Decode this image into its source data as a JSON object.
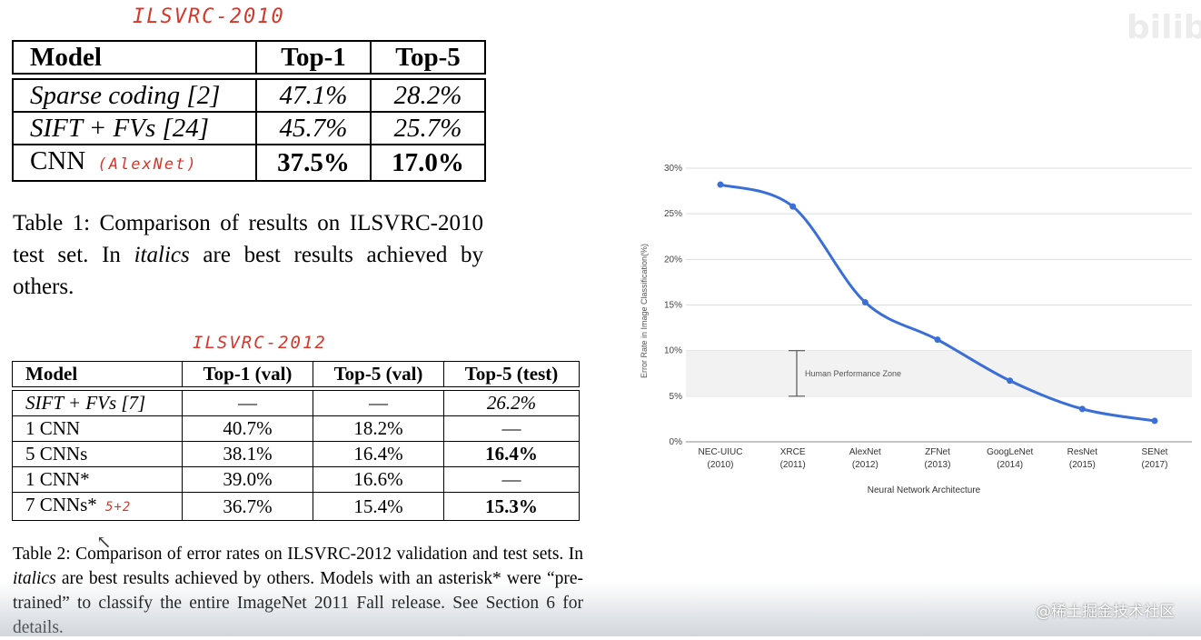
{
  "annotations": {
    "table1_note": "ILSVRC-2010",
    "alexnet_note": "(AlexNet)",
    "table2_note": "ILSVRC-2012",
    "cnn7_note": "5+2"
  },
  "table1": {
    "headers": [
      "Model",
      "Top-1",
      "Top-5"
    ],
    "rows": [
      {
        "model": "Sparse coding [2]",
        "top1": "47.1%",
        "top5": "28.2%"
      },
      {
        "model": "SIFT + FVs [24]",
        "top1": "45.7%",
        "top5": "25.7%"
      },
      {
        "model": "CNN",
        "top1": "37.5%",
        "top5": "17.0%"
      }
    ],
    "caption": "Table 1: Comparison of results on ILSVRC-2010 test set. In italics are best results achieved by others."
  },
  "table2": {
    "headers": [
      "Model",
      "Top-1 (val)",
      "Top-5 (val)",
      "Top-5 (test)"
    ],
    "rows": [
      {
        "model": "SIFT + FVs [7]",
        "top1": "—",
        "top5val": "—",
        "top5test": "26.2%"
      },
      {
        "model": "1 CNN",
        "top1": "40.7%",
        "top5val": "18.2%",
        "top5test": "—"
      },
      {
        "model": "5 CNNs",
        "top1": "38.1%",
        "top5val": "16.4%",
        "top5test": "16.4%"
      },
      {
        "model": "1 CNN*",
        "top1": "39.0%",
        "top5val": "16.6%",
        "top5test": "—"
      },
      {
        "model": "7 CNNs*",
        "top1": "36.7%",
        "top5val": "15.4%",
        "top5test": "15.3%"
      }
    ],
    "caption": "Table 2: Comparison of error rates on ILSVRC-2012 validation and test sets. In italics are best results achieved by others. Models with an asterisk* were “pre-trained” to classify the entire ImageNet 2011 Fall release. See Section 6 for details."
  },
  "chart_data": {
    "type": "line",
    "title": "",
    "xlabel": "Neural Network Architecture",
    "ylabel": "Error Rate in Image Classification(%)",
    "ylim": [
      0,
      30
    ],
    "yticks": [
      "0%",
      "5%",
      "10%",
      "15%",
      "20%",
      "25%",
      "30%"
    ],
    "ytick_values": [
      0,
      5,
      10,
      15,
      20,
      25,
      30
    ],
    "categories": [
      {
        "name": "NEC-UIUC",
        "year": "(2010)"
      },
      {
        "name": "XRCE",
        "year": "(2011)"
      },
      {
        "name": "AlexNet",
        "year": "(2012)"
      },
      {
        "name": "ZFNet",
        "year": "(2013)"
      },
      {
        "name": "GoogLeNet",
        "year": "(2014)"
      },
      {
        "name": "ResNet",
        "year": "(2015)"
      },
      {
        "name": "SENet",
        "year": "(2017)"
      }
    ],
    "values": [
      28.2,
      25.8,
      15.3,
      11.2,
      6.7,
      3.6,
      2.3
    ],
    "band": {
      "label": "Human Performance Zone",
      "from": 5,
      "to": 10
    },
    "grid": true,
    "line_color": "#3a6fd8"
  },
  "watermarks": {
    "top_right": "bilib",
    "bottom_right": "@稀土掘金技术社区"
  }
}
